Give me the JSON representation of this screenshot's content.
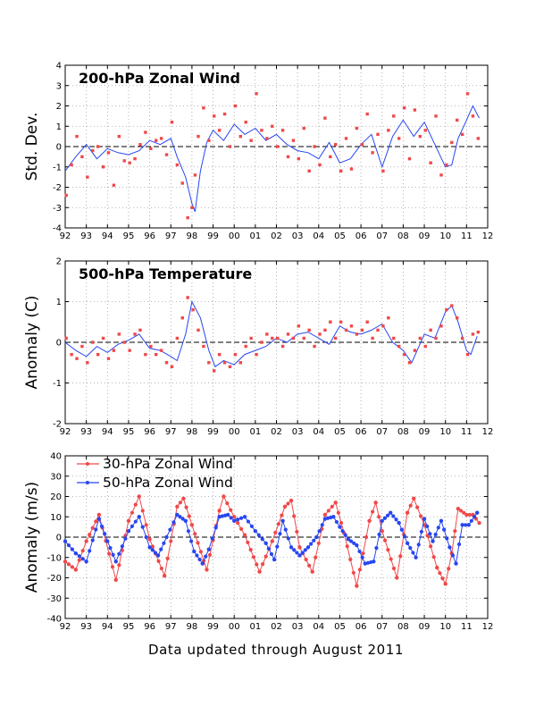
{
  "footer": "Data updated through August 2011",
  "colors": {
    "red": "#f04848",
    "blue": "#2846f0",
    "black": "#000000",
    "grid": "#a0a0a0"
  },
  "chart_data": [
    {
      "type": "line",
      "title": "200-hPa Zonal Wind",
      "ylabel": "Std. Dev.",
      "xlabel": "",
      "ylim": [
        -4,
        4
      ],
      "yticks": [
        -4,
        -3,
        -2,
        -1,
        0,
        1,
        2,
        3,
        4
      ],
      "xlim": [
        1992,
        2012
      ],
      "xticks": [
        "92",
        "93",
        "94",
        "95",
        "96",
        "97",
        "98",
        "99",
        "00",
        "01",
        "02",
        "03",
        "04",
        "05",
        "06",
        "07",
        "08",
        "09",
        "10",
        "11",
        "12"
      ],
      "grid": true,
      "zero_line": true,
      "series": [
        {
          "style": "smoothed line",
          "color": "#2846f0",
          "x": [
            1992.0,
            1992.5,
            1993.0,
            1993.5,
            1994.0,
            1994.5,
            1995.0,
            1995.5,
            1996.0,
            1996.5,
            1997.0,
            1997.3,
            1997.7,
            1998.0,
            1998.15,
            1998.4,
            1998.7,
            1999.0,
            1999.5,
            2000.0,
            2000.5,
            2001.0,
            2001.5,
            2002.0,
            2002.5,
            2003.0,
            2003.5,
            2004.0,
            2004.5,
            2005.0,
            2005.5,
            2006.0,
            2006.5,
            2007.0,
            2007.5,
            2008.0,
            2008.5,
            2009.0,
            2009.5,
            2010.0,
            2010.3,
            2010.6,
            2011.0,
            2011.3,
            2011.6
          ],
          "y": [
            -1.2,
            -0.5,
            0.1,
            -0.6,
            -0.1,
            -0.3,
            -0.4,
            -0.2,
            0.3,
            0.1,
            0.4,
            -0.5,
            -1.5,
            -2.8,
            -3.2,
            -1.2,
            0.2,
            0.8,
            0.3,
            1.1,
            0.6,
            0.9,
            0.3,
            0.6,
            0.1,
            -0.2,
            -0.3,
            -0.6,
            0.2,
            -0.8,
            -0.6,
            0.1,
            0.6,
            -1.0,
            0.5,
            1.3,
            0.5,
            1.2,
            0.1,
            -1.0,
            -0.9,
            0.4,
            1.3,
            2.0,
            1.4
          ]
        },
        {
          "style": "scatter",
          "color": "#f04848",
          "x": [
            1992.05,
            1992.3,
            1992.55,
            1992.8,
            1993.05,
            1993.3,
            1993.55,
            1993.8,
            1994.05,
            1994.3,
            1994.55,
            1994.8,
            1995.05,
            1995.3,
            1995.55,
            1995.8,
            1996.05,
            1996.3,
            1996.55,
            1996.8,
            1997.05,
            1997.3,
            1997.55,
            1997.8,
            1998.0,
            1998.15,
            1998.3,
            1998.55,
            1998.8,
            1999.05,
            1999.3,
            1999.55,
            1999.8,
            2000.05,
            2000.3,
            2000.55,
            2000.8,
            2001.05,
            2001.3,
            2001.55,
            2001.8,
            2002.05,
            2002.3,
            2002.55,
            2002.8,
            2003.05,
            2003.3,
            2003.55,
            2003.8,
            2004.05,
            2004.3,
            2004.55,
            2004.8,
            2005.05,
            2005.3,
            2005.55,
            2005.8,
            2006.05,
            2006.3,
            2006.55,
            2006.8,
            2007.05,
            2007.3,
            2007.55,
            2007.8,
            2008.05,
            2008.3,
            2008.55,
            2008.8,
            2009.05,
            2009.3,
            2009.55,
            2009.8,
            2010.05,
            2010.3,
            2010.55,
            2010.8,
            2011.05,
            2011.3,
            2011.55
          ],
          "y": [
            -2.4,
            -0.9,
            0.5,
            -0.5,
            -1.5,
            -0.2,
            0.0,
            -1.0,
            -0.3,
            -1.9,
            0.5,
            -0.7,
            -0.8,
            -0.6,
            0.1,
            0.7,
            -0.1,
            0.3,
            0.4,
            -0.4,
            1.2,
            -0.9,
            -1.8,
            -3.5,
            -3.0,
            -1.4,
            0.5,
            1.9,
            0.3,
            1.5,
            0.8,
            1.6,
            0.0,
            2.0,
            0.5,
            1.2,
            0.3,
            2.6,
            0.8,
            0.4,
            1.0,
            0.0,
            0.8,
            -0.5,
            0.3,
            -0.6,
            0.9,
            -1.2,
            0.0,
            -0.9,
            1.4,
            -0.5,
            0.1,
            -1.2,
            0.4,
            -1.1,
            0.9,
            0.1,
            1.6,
            -0.3,
            0.6,
            -1.2,
            0.8,
            1.5,
            0.4,
            1.9,
            -0.6,
            1.8,
            0.5,
            0.8,
            -0.8,
            1.5,
            -1.4,
            -0.9,
            0.2,
            1.3,
            0.6,
            2.6,
            1.5,
            0.4
          ]
        }
      ]
    },
    {
      "type": "line",
      "title": "500-hPa Temperature",
      "ylabel": "Anomaly (C)",
      "xlabel": "",
      "ylim": [
        -2,
        2
      ],
      "yticks": [
        -2,
        -1,
        0,
        1,
        2
      ],
      "xlim": [
        1992,
        2012
      ],
      "xticks": [
        "92",
        "93",
        "94",
        "95",
        "96",
        "97",
        "98",
        "99",
        "00",
        "01",
        "02",
        "03",
        "04",
        "05",
        "06",
        "07",
        "08",
        "09",
        "10",
        "11",
        "12"
      ],
      "grid": true,
      "zero_line": true,
      "series": [
        {
          "style": "smoothed line",
          "color": "#2846f0",
          "x": [
            1992.0,
            1992.5,
            1993.0,
            1993.5,
            1994.0,
            1994.5,
            1995.0,
            1995.5,
            1996.0,
            1996.5,
            1997.0,
            1997.3,
            1997.7,
            1998.0,
            1998.4,
            1998.8,
            1999.1,
            1999.5,
            2000.0,
            2000.5,
            2001.0,
            2001.5,
            2002.0,
            2002.5,
            2003.0,
            2003.5,
            2004.0,
            2004.5,
            2005.0,
            2005.5,
            2006.0,
            2006.5,
            2007.0,
            2007.5,
            2008.0,
            2008.4,
            2009.0,
            2009.5,
            2010.0,
            2010.3,
            2010.6,
            2011.0,
            2011.2,
            2011.5
          ],
          "y": [
            0.0,
            -0.2,
            -0.35,
            -0.1,
            -0.25,
            -0.05,
            0.05,
            0.2,
            -0.15,
            -0.2,
            -0.35,
            -0.45,
            0.2,
            1.0,
            0.6,
            -0.2,
            -0.6,
            -0.45,
            -0.55,
            -0.3,
            -0.2,
            -0.1,
            0.1,
            0.0,
            0.2,
            0.25,
            0.1,
            -0.05,
            0.4,
            0.25,
            0.2,
            0.3,
            0.45,
            0.0,
            -0.2,
            -0.5,
            0.2,
            0.1,
            0.75,
            0.9,
            0.5,
            -0.2,
            -0.3,
            0.15
          ]
        },
        {
          "style": "scatter",
          "color": "#f04848",
          "x": [
            1992.05,
            1992.3,
            1992.55,
            1992.8,
            1993.05,
            1993.3,
            1993.55,
            1993.8,
            1994.05,
            1994.3,
            1994.55,
            1994.8,
            1995.05,
            1995.3,
            1995.55,
            1995.8,
            1996.05,
            1996.3,
            1996.55,
            1996.8,
            1997.05,
            1997.3,
            1997.55,
            1997.8,
            1998.05,
            1998.3,
            1998.55,
            1998.8,
            1999.05,
            1999.3,
            1999.55,
            1999.8,
            2000.05,
            2000.3,
            2000.55,
            2000.8,
            2001.05,
            2001.3,
            2001.55,
            2001.8,
            2002.05,
            2002.3,
            2002.55,
            2002.8,
            2003.05,
            2003.3,
            2003.55,
            2003.8,
            2004.05,
            2004.3,
            2004.55,
            2004.8,
            2005.05,
            2005.3,
            2005.55,
            2005.8,
            2006.05,
            2006.3,
            2006.55,
            2006.8,
            2007.05,
            2007.3,
            2007.55,
            2007.8,
            2008.05,
            2008.3,
            2008.55,
            2008.8,
            2009.05,
            2009.3,
            2009.55,
            2009.8,
            2010.05,
            2010.3,
            2010.55,
            2010.8,
            2011.05,
            2011.3,
            2011.55
          ],
          "y": [
            0.1,
            -0.3,
            -0.4,
            -0.1,
            -0.5,
            0.0,
            -0.3,
            0.1,
            -0.4,
            -0.2,
            0.2,
            0.0,
            -0.2,
            0.2,
            0.3,
            -0.3,
            -0.1,
            -0.3,
            -0.2,
            -0.5,
            -0.6,
            0.1,
            0.6,
            1.1,
            0.8,
            0.3,
            -0.1,
            -0.5,
            -0.7,
            -0.3,
            -0.5,
            -0.6,
            -0.3,
            -0.5,
            -0.1,
            0.1,
            -0.3,
            0.0,
            0.2,
            0.1,
            0.1,
            -0.1,
            0.2,
            0.1,
            0.4,
            0.1,
            0.3,
            -0.1,
            0.2,
            0.3,
            0.5,
            0.1,
            0.5,
            0.3,
            0.4,
            0.2,
            0.3,
            0.5,
            0.1,
            0.3,
            0.4,
            0.6,
            0.1,
            -0.1,
            -0.3,
            -0.5,
            -0.2,
            0.1,
            -0.1,
            0.3,
            0.1,
            0.4,
            0.8,
            0.9,
            0.6,
            0.1,
            -0.3,
            0.2,
            0.25
          ]
        }
      ]
    },
    {
      "type": "line",
      "ylabel": "Anomaly (m/s)",
      "xlabel": "",
      "ylim": [
        -40,
        40
      ],
      "yticks": [
        -40,
        -30,
        -20,
        -10,
        0,
        10,
        20,
        30,
        40
      ],
      "xlim": [
        1992,
        2012
      ],
      "xticks": [
        "92",
        "93",
        "94",
        "95",
        "96",
        "97",
        "98",
        "99",
        "00",
        "01",
        "02",
        "03",
        "04",
        "05",
        "06",
        "07",
        "08",
        "09",
        "10",
        "11",
        "12"
      ],
      "grid": true,
      "zero_line": true,
      "legend": "top-left",
      "series": [
        {
          "name": "30-hPa Zonal Wind",
          "style": "line with markers",
          "color": "#f04848",
          "x": [
            1992.0,
            1992.5,
            1993.0,
            1993.6,
            1994.4,
            1995.0,
            1995.5,
            1996.0,
            1996.7,
            1997.3,
            1997.6,
            1998.0,
            1998.7,
            1999.3,
            1999.5,
            2000.0,
            2000.5,
            2001.2,
            2001.8,
            2002.4,
            2002.7,
            2003.1,
            2003.7,
            2004.3,
            2004.8,
            2005.2,
            2005.8,
            2006.4,
            2006.7,
            2007.0,
            2007.7,
            2008.2,
            2008.5,
            2009.0,
            2009.6,
            2010.0,
            2010.3,
            2010.6,
            2011.0,
            2011.3,
            2011.6
          ],
          "y": [
            -12,
            -16,
            -2,
            11,
            -21,
            8,
            20,
            -1,
            -19,
            15,
            19,
            6,
            -16,
            13,
            20,
            10,
            1,
            -17,
            -2,
            15,
            18,
            -5,
            -17,
            11,
            17,
            2,
            -24,
            8,
            17,
            3,
            -20,
            12,
            19,
            6,
            -15,
            -23,
            -8,
            14,
            11,
            11,
            7
          ]
        },
        {
          "name": "50-hPa Zonal Wind",
          "style": "line with markers",
          "color": "#2846f0",
          "x": [
            1992.0,
            1992.5,
            1993.0,
            1993.6,
            1994.0,
            1994.4,
            1995.0,
            1995.5,
            1996.0,
            1996.4,
            1996.8,
            1997.3,
            1997.7,
            1998.1,
            1998.5,
            1998.8,
            1999.3,
            1999.7,
            2000.0,
            2000.5,
            2001.0,
            2001.5,
            2001.9,
            2002.3,
            2002.7,
            2003.1,
            2003.5,
            2003.9,
            2004.3,
            2004.7,
            2005.0,
            2005.4,
            2005.8,
            2006.2,
            2006.6,
            2007.0,
            2007.4,
            2007.8,
            2008.2,
            2008.6,
            2009.0,
            2009.4,
            2009.8,
            2010.2,
            2010.5,
            2010.8,
            2011.1,
            2011.5
          ],
          "y": [
            -2,
            -8,
            -12,
            9,
            -2,
            -12,
            3,
            10,
            -5,
            -9,
            0,
            11,
            8,
            -7,
            -13,
            -6,
            10,
            11,
            8,
            10,
            3,
            -3,
            -11,
            8,
            -5,
            -9,
            -5,
            0,
            9,
            10,
            5,
            -1,
            -4,
            -13,
            -12,
            8,
            12,
            7,
            -3,
            -10,
            9,
            -2,
            8,
            -5,
            -13,
            6,
            6,
            12
          ]
        }
      ]
    }
  ]
}
